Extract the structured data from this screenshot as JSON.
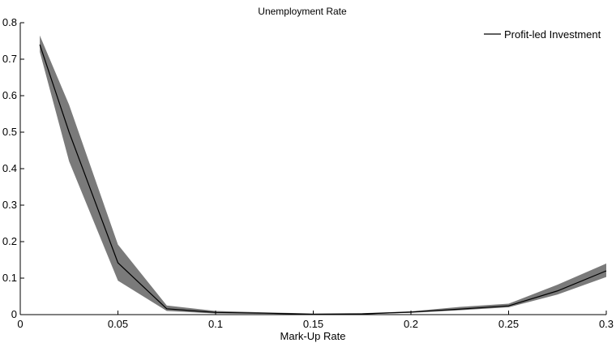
{
  "chart_data": {
    "type": "line",
    "title": "Unemployment Rate",
    "xlabel": "Mark-Up Rate",
    "ylabel": "",
    "xlim": [
      0,
      0.3
    ],
    "ylim": [
      0,
      0.8
    ],
    "xticks": [
      0,
      0.05,
      0.1,
      0.15,
      0.2,
      0.25,
      0.3
    ],
    "xtick_labels": [
      "0",
      "0.05",
      "0.1",
      "0.15",
      "0.2",
      "0.25",
      "0.3"
    ],
    "yticks": [
      0,
      0.1,
      0.2,
      0.3,
      0.4,
      0.5,
      0.6,
      0.7,
      0.8
    ],
    "ytick_labels": [
      "0",
      "0.1",
      "0.2",
      "0.3",
      "0.4",
      "0.5",
      "0.6",
      "0.7",
      "0.8"
    ],
    "grid": false,
    "legend_position": "top-right",
    "series": [
      {
        "name": "Profit-led Investment",
        "color": "#000000",
        "band_color": "#7a7a7a",
        "x": [
          0.01,
          0.025,
          0.05,
          0.075,
          0.1,
          0.125,
          0.15,
          0.175,
          0.2,
          0.225,
          0.25,
          0.275,
          0.3
        ],
        "y": [
          0.74,
          0.5,
          0.142,
          0.016,
          0.006,
          0.004,
          0.001,
          0.002,
          0.007,
          0.015,
          0.024,
          0.065,
          0.12
        ],
        "lower": [
          0.72,
          0.42,
          0.093,
          0.01,
          0.003,
          0.002,
          0.0,
          0.001,
          0.005,
          0.012,
          0.02,
          0.055,
          0.103
        ],
        "upper": [
          0.765,
          0.575,
          0.192,
          0.025,
          0.01,
          0.006,
          0.003,
          0.004,
          0.009,
          0.021,
          0.03,
          0.082,
          0.14
        ]
      }
    ]
  }
}
